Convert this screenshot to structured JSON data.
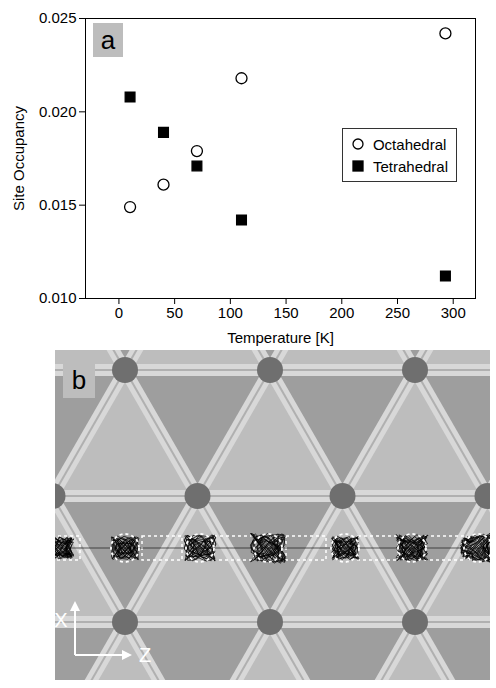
{
  "chart_data": {
    "type": "scatter",
    "panel_label": "a",
    "x_label": "Temperature [K]",
    "y_label": "Site Occupancy",
    "x": [
      10,
      40,
      70,
      110,
      293
    ],
    "series": [
      {
        "name": "Octahedral",
        "color": "#000000",
        "marker": "open circle",
        "values": [
          0.0149,
          0.0161,
          0.0179,
          0.0218,
          0.0242
        ]
      },
      {
        "name": "Tetrahedral",
        "color": "#000000",
        "marker": "square",
        "values": [
          0.0208,
          0.0189,
          0.0171,
          0.0142,
          0.0112
        ]
      }
    ],
    "xlim": [
      -30,
      320
    ],
    "xticks": [
      0,
      50,
      100,
      150,
      200,
      250,
      300
    ],
    "ylim": [
      0.01,
      0.025
    ],
    "yticks": [
      {
        "value": 0.01,
        "label": "0.010"
      },
      0.015,
      {
        "value": 0.02,
        "label": "0.020"
      },
      0.025
    ],
    "legend": "right",
    "grid": false
  },
  "diagram": {
    "panel_label": "b",
    "axis_labels": [
      "X",
      "Z"
    ]
  }
}
